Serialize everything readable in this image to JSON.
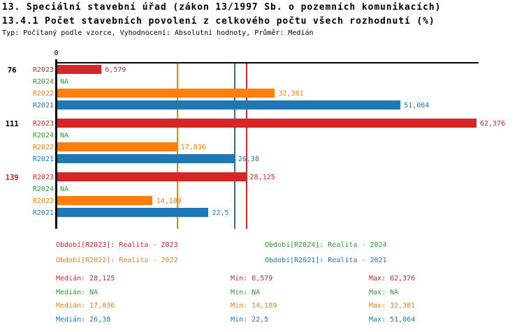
{
  "header": {
    "title": "13. Speciální stavební úřad (zákon 13/1997 Sb. o pozemních komunikacích)",
    "subtitle": "13.4.1 Počet stavebních povolení z celkového počtu všech rozhodnutí (%)",
    "meta": "Typ: Počítaný podle vzorce, Vyhodnocení: Absolutní hodnoty, Průměr: Medián"
  },
  "colors": {
    "r2023_red": "#d62728",
    "r2024_green": "#2ca02c",
    "r2022_orange": "#ff7f0e",
    "r2021_blue": "#1f77b4",
    "axis_black": "#000000"
  },
  "chart_data": {
    "type": "bar",
    "orientation": "horizontal",
    "title": "13. Speciální stavební úřad (zákon 13/1997 Sb. o pozemních komunikacích)",
    "subtitle": "13.4.1 Počet stavebních povolení z celkového počtu všech rozhodnutí (%)",
    "unit": "%",
    "grid": false,
    "value_labels": true,
    "xlim": [
      0,
      63
    ],
    "x_axis": {
      "origin_label": "0"
    },
    "series": [
      {
        "id": "R2023",
        "name": "Realita - 2023",
        "color": "#d62728"
      },
      {
        "id": "R2024",
        "name": "Realita - 2024",
        "color": "#2ca02c"
      },
      {
        "id": "R2022",
        "name": "Realita - 2022",
        "color": "#ff7f0e"
      },
      {
        "id": "R2021",
        "name": "Realita - 2021",
        "color": "#1f77b4"
      }
    ],
    "groups": [
      {
        "label": "76",
        "label_color": "#000000",
        "values": [
          {
            "series": "R2023",
            "value": 6.579,
            "display": "6,579"
          },
          {
            "series": "R2024",
            "value": null,
            "display": "NA"
          },
          {
            "series": "R2022",
            "value": 32.381,
            "display": "32,381"
          },
          {
            "series": "R2021",
            "value": 51.064,
            "display": "51,064"
          }
        ]
      },
      {
        "label": "111",
        "label_color": "#000000",
        "values": [
          {
            "series": "R2023",
            "value": 62.376,
            "display": "62,376"
          },
          {
            "series": "R2024",
            "value": null,
            "display": "NA"
          },
          {
            "series": "R2022",
            "value": 17.836,
            "display": "17,836"
          },
          {
            "series": "R2021",
            "value": 26.38,
            "display": "26,38"
          }
        ]
      },
      {
        "label": "139",
        "label_color": "#d62728",
        "values": [
          {
            "series": "R2023",
            "value": 28.125,
            "display": "28,125"
          },
          {
            "series": "R2024",
            "value": null,
            "display": "NA"
          },
          {
            "series": "R2022",
            "value": 14.189,
            "display": "14,189"
          },
          {
            "series": "R2021",
            "value": 22.5,
            "display": "22,5"
          }
        ]
      }
    ],
    "reference_lines": [
      {
        "series": "R2022",
        "stat": "median",
        "value": 17.836,
        "color": "#ff7f0e"
      },
      {
        "series": "R2021",
        "stat": "median",
        "value": 26.38,
        "color": "#1f77b4"
      },
      {
        "series": "R2023",
        "stat": "median",
        "value": 28.125,
        "color": "#d62728"
      }
    ]
  },
  "legend": {
    "items": [
      {
        "series": "R2023",
        "text": "Období[R2023]: Realita - 2023",
        "color": "#d62728"
      },
      {
        "series": "R2024",
        "text": "Období[R2024]: Realita - 2024",
        "color": "#2ca02c"
      },
      {
        "series": "R2022",
        "text": "Období[R2022]: Realita - 2022",
        "color": "#ff7f0e"
      },
      {
        "series": "R2021",
        "text": "Období[R2021]: Realita - 2021",
        "color": "#1f77b4"
      }
    ]
  },
  "stats": {
    "rows": [
      {
        "series": "R2023",
        "color": "#d62728",
        "median": "Medián: 28,125",
        "min": "Min: 6,579",
        "max": "Max: 62,376"
      },
      {
        "series": "R2024",
        "color": "#2ca02c",
        "median": "Medián: NA",
        "min": "Min: NA",
        "max": "Max: NA"
      },
      {
        "series": "R2022",
        "color": "#ff7f0e",
        "median": "Medián: 17,836",
        "min": "Min: 14,189",
        "max": "Max: 32,381"
      },
      {
        "series": "R2021",
        "color": "#1f77b4",
        "median": "Medián: 26,38",
        "min": "Min: 22,5",
        "max": "Max: 51,064"
      }
    ]
  }
}
